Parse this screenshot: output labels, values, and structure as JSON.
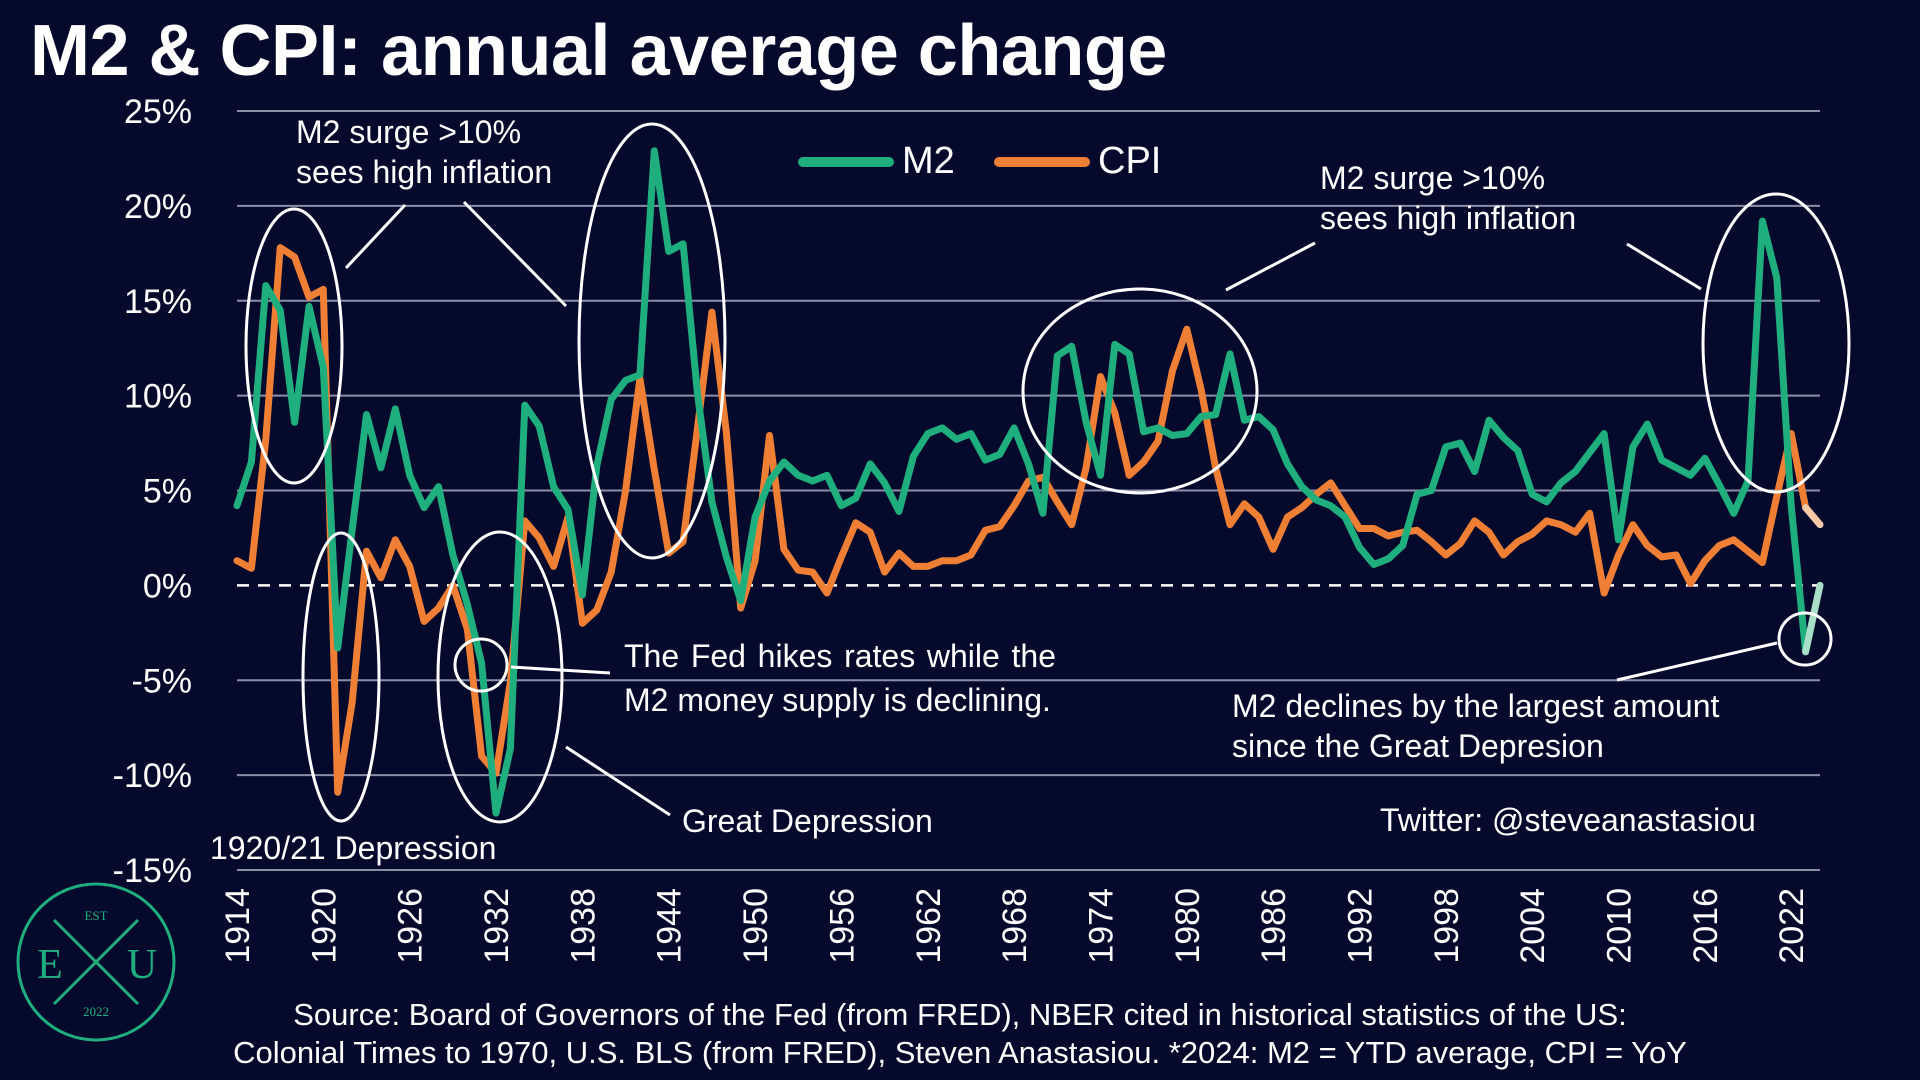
{
  "chart_data": {
    "type": "line",
    "title": "M2 & CPI: annual average change",
    "x": [
      1914,
      1915,
      1916,
      1917,
      1918,
      1919,
      1920,
      1921,
      1922,
      1923,
      1924,
      1925,
      1926,
      1927,
      1928,
      1929,
      1930,
      1931,
      1932,
      1933,
      1934,
      1935,
      1936,
      1937,
      1938,
      1939,
      1940,
      1941,
      1942,
      1943,
      1944,
      1945,
      1946,
      1947,
      1948,
      1949,
      1950,
      1951,
      1952,
      1953,
      1954,
      1955,
      1956,
      1957,
      1958,
      1959,
      1960,
      1961,
      1962,
      1963,
      1964,
      1965,
      1966,
      1967,
      1968,
      1969,
      1970,
      1971,
      1972,
      1973,
      1974,
      1975,
      1976,
      1977,
      1978,
      1979,
      1980,
      1981,
      1982,
      1983,
      1984,
      1985,
      1986,
      1987,
      1988,
      1989,
      1990,
      1991,
      1992,
      1993,
      1994,
      1995,
      1996,
      1997,
      1998,
      1999,
      2000,
      2001,
      2002,
      2003,
      2004,
      2005,
      2006,
      2007,
      2008,
      2009,
      2010,
      2011,
      2012,
      2013,
      2014,
      2015,
      2016,
      2017,
      2018,
      2019,
      2020,
      2021,
      2022,
      2023,
      2024
    ],
    "series": [
      {
        "name": "M2",
        "color": "#1fae7d",
        "values": [
          4.2,
          6.5,
          15.8,
          14.5,
          8.6,
          14.7,
          11.5,
          -3.3,
          2.9,
          9.0,
          6.2,
          9.3,
          5.8,
          4.1,
          5.2,
          1.6,
          -1.0,
          -4.1,
          -12.0,
          -8.6,
          9.5,
          8.4,
          5.2,
          4.0,
          -0.5,
          6.3,
          9.8,
          10.8,
          11.1,
          22.9,
          17.6,
          18.0,
          10.1,
          4.4,
          1.5,
          -0.8,
          3.6,
          5.5,
          6.5,
          5.8,
          5.5,
          5.8,
          4.2,
          4.6,
          6.4,
          5.4,
          3.9,
          6.8,
          8.0,
          8.3,
          7.7,
          8.0,
          6.6,
          6.9,
          8.3,
          6.4,
          3.8,
          12.1,
          12.6,
          8.6,
          5.8,
          12.7,
          12.2,
          8.1,
          8.3,
          7.9,
          8.0,
          8.9,
          9.0,
          12.2,
          8.7,
          8.9,
          8.2,
          6.4,
          5.2,
          4.5,
          4.2,
          3.6,
          2.0,
          1.1,
          1.4,
          2.1,
          4.8,
          5.0,
          7.3,
          7.5,
          6.0,
          8.7,
          7.8,
          7.1,
          4.8,
          4.4,
          5.4,
          6.0,
          7.0,
          8.0,
          2.4,
          7.3,
          8.5,
          6.6,
          6.2,
          5.8,
          6.7,
          5.3,
          3.8,
          5.5,
          19.2,
          16.2,
          4.2,
          -3.5,
          0.0
        ]
      },
      {
        "name": "CPI",
        "color": "#f07f36",
        "values": [
          1.3,
          0.9,
          7.7,
          17.8,
          17.3,
          15.2,
          15.6,
          -10.9,
          -6.2,
          1.8,
          0.4,
          2.4,
          1.0,
          -1.9,
          -1.2,
          0.0,
          -2.3,
          -9.0,
          -9.9,
          -5.1,
          3.4,
          2.5,
          1.0,
          3.6,
          -2.0,
          -1.3,
          0.7,
          5.0,
          10.9,
          6.1,
          1.7,
          2.3,
          8.3,
          14.4,
          8.1,
          -1.2,
          1.3,
          7.9,
          1.9,
          0.8,
          0.7,
          -0.4,
          1.5,
          3.3,
          2.8,
          0.7,
          1.7,
          1.0,
          1.0,
          1.3,
          1.3,
          1.6,
          2.9,
          3.1,
          4.2,
          5.5,
          5.7,
          4.4,
          3.2,
          6.2,
          11.0,
          9.1,
          5.8,
          6.5,
          7.6,
          11.3,
          13.5,
          10.3,
          6.2,
          3.2,
          4.3,
          3.6,
          1.9,
          3.6,
          4.1,
          4.8,
          5.4,
          4.2,
          3.0,
          3.0,
          2.6,
          2.8,
          2.9,
          2.3,
          1.6,
          2.2,
          3.4,
          2.8,
          1.6,
          2.3,
          2.7,
          3.4,
          3.2,
          2.8,
          3.8,
          -0.4,
          1.6,
          3.2,
          2.1,
          1.5,
          1.6,
          0.1,
          1.3,
          2.1,
          2.4,
          1.8,
          1.2,
          4.7,
          8.0,
          4.1,
          3.2
        ]
      }
    ],
    "ylim": [
      -15,
      25
    ],
    "yticks": [
      -15,
      -10,
      -5,
      0,
      5,
      10,
      15,
      20,
      25
    ],
    "ytick_labels": [
      "-15%",
      "-10%",
      "-5%",
      "0%",
      "5%",
      "10%",
      "15%",
      "20%",
      "25%"
    ],
    "xticks": [
      1914,
      1920,
      1926,
      1932,
      1938,
      1944,
      1950,
      1956,
      1962,
      1968,
      1974,
      1980,
      1986,
      1992,
      1998,
      2004,
      2010,
      2016,
      2022
    ],
    "xtick_labels": [
      "1914",
      "1920",
      "1926",
      "1932",
      "1938",
      "1944",
      "1950",
      "1956",
      "1962",
      "1968",
      "1974",
      "1980",
      "1986",
      "1992",
      "1998",
      "2004",
      "2010",
      "2016",
      "2022"
    ],
    "grid": true,
    "legend_position": "top-center",
    "latest_highlight_colors": {
      "M2": "#a8dfc9",
      "CPI": "#f8c9a6"
    }
  },
  "annotations": {
    "surge_left_line1": "M2 surge >10%",
    "surge_left_line2": "sees high inflation",
    "surge_right_line1": "M2 surge >10%",
    "surge_right_line2": "sees high inflation",
    "fed_hikes": "The Fed hikes rates while the M2 money supply is declining.",
    "great_depression": "Great Depression",
    "depression_1920": "1920/21 Depression",
    "m2_declines_line1": "M2 declines by the largest amount",
    "m2_declines_line2": "since the Great Depresion",
    "twitter": "Twitter: @steveanastasiou"
  },
  "source_line1": "Source: Board of Governors of the Fed (from FRED), NBER cited in historical statistics of the US:",
  "source_line2": "Colonial Times to 1970, U.S. BLS (from FRED), Steven Anastasiou. *2024: M2 = YTD average, CPI = YoY",
  "logo": {
    "top": "EST",
    "left": "E",
    "center": "X",
    "right": "U",
    "bottom": "2022",
    "color": "#1fae7d"
  }
}
